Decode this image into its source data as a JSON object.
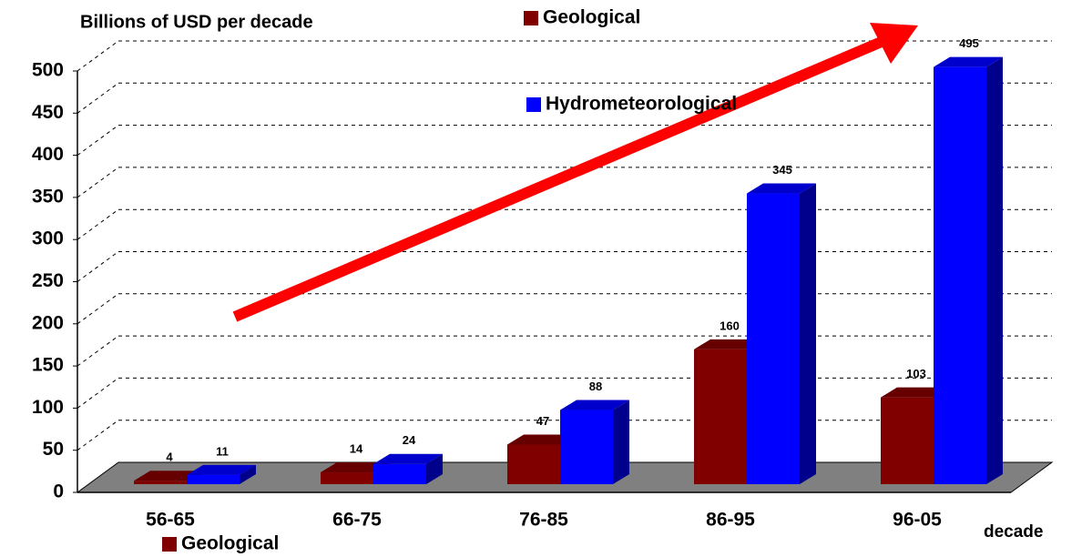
{
  "chart_data": {
    "type": "bar3d",
    "y_axis_label": "Billions of USD per decade",
    "x_axis_label": "decade",
    "categories": [
      "56-65",
      "66-75",
      "76-85",
      "86-95",
      "96-05"
    ],
    "series": [
      {
        "name": "Geological",
        "color": "#800000",
        "values": [
          4,
          14,
          47,
          160,
          103
        ]
      },
      {
        "name": "Hydrometeorological",
        "color": "#0000ff",
        "values": [
          11,
          24,
          88,
          345,
          495
        ]
      }
    ],
    "ylim": [
      0,
      500
    ],
    "yticks": [
      0,
      50,
      100,
      150,
      200,
      250,
      300,
      350,
      400,
      450,
      500
    ],
    "grid": true
  }
}
